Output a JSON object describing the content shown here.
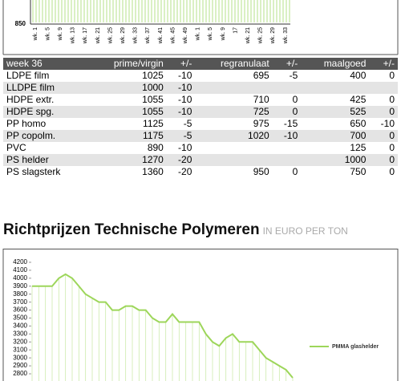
{
  "chart_data": [
    {
      "type": "line",
      "categories": [
        "wk. 1",
        "wk. 5",
        "wk. 9",
        "wk. 13",
        "wk. 17",
        "wk. 21",
        "wk. 25",
        "wk. 29",
        "wk. 33",
        "wk. 37",
        "wk. 41",
        "wk. 45",
        "wk. 49",
        "wk. 1",
        "wk. 5",
        "wk. 9",
        "17",
        "wk. 21",
        "wk. 25",
        "wk. 29",
        "wk. 33"
      ],
      "yticks": [
        850
      ],
      "color": "#b5e08a"
    },
    {
      "type": "line",
      "series": [
        {
          "name": "PMMA glashelder",
          "color": "#9dd65a",
          "values": [
            3900,
            3900,
            3900,
            3900,
            4000,
            4050,
            4000,
            3900,
            3800,
            3750,
            3700,
            3700,
            3600,
            3600,
            3650,
            3650,
            3600,
            3600,
            3500,
            3450,
            3450,
            3550,
            3450,
            3450,
            3450,
            3450,
            3300,
            3200,
            3150,
            3250,
            3300,
            3200,
            3200,
            3200,
            3100,
            3000,
            2950,
            2900,
            2850,
            2750
          ]
        }
      ],
      "ylim": [
        2750,
        4200
      ],
      "yticks": [
        2800,
        2900,
        3000,
        3100,
        3200,
        3300,
        3400,
        3500,
        3600,
        3700,
        3800,
        3900,
        4000,
        4100,
        4200
      ]
    }
  ],
  "table": {
    "header": [
      "week 36",
      "prime/virgin",
      "+/-",
      "regranulaat",
      "+/-",
      "maalgoed",
      "+/-"
    ],
    "rows": [
      [
        "LDPE film",
        1025,
        -10,
        695,
        -5,
        400,
        0
      ],
      [
        "LLDPE film",
        1000,
        -10,
        null,
        null,
        null,
        null
      ],
      [
        "HDPE extr.",
        1055,
        -10,
        710,
        0,
        425,
        0
      ],
      [
        "HDPE spg.",
        1055,
        -10,
        725,
        0,
        525,
        0
      ],
      [
        "PP homo",
        1125,
        -5,
        975,
        -15,
        650,
        -10
      ],
      [
        "PP copolm.",
        1175,
        -5,
        1020,
        -10,
        700,
        0
      ],
      [
        "PVC",
        890,
        -10,
        null,
        null,
        125,
        0
      ],
      [
        "PS helder",
        1270,
        -20,
        null,
        null,
        1000,
        0
      ],
      [
        "PS slagsterk",
        1360,
        -20,
        950,
        0,
        750,
        0
      ]
    ]
  },
  "section_title": "Richtprijzen Technische Polymeren",
  "section_subtitle": "IN EURO PER TON"
}
